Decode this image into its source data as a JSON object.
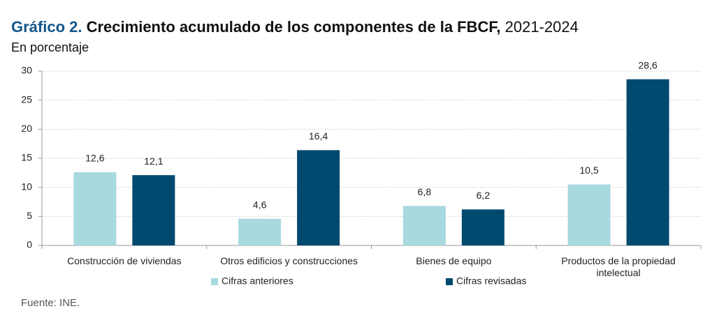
{
  "chart_data": {
    "type": "bar",
    "title_label": "Gráfico 2.",
    "title": "Crecimiento acumulado de los componentes de la FBCF,",
    "title_period": "2021-2024",
    "subtitle": "En porcentaje",
    "categories": [
      "Construcción de viviendas",
      "Otros edificios y construcciones",
      "Bienes de equipo",
      "Productos de la propiedad intelectual"
    ],
    "series": [
      {
        "name": "Cifras anteriores",
        "color": "#a8d9df",
        "values": [
          12.6,
          4.6,
          6.8,
          10.5
        ],
        "value_labels": [
          "12,6",
          "4,6",
          "6,8",
          "10,5"
        ]
      },
      {
        "name": "Cifras revisadas",
        "color": "#00496f",
        "values": [
          12.1,
          16.4,
          6.2,
          28.6
        ],
        "value_labels": [
          "12,1",
          "16,4",
          "6,2",
          "28,6"
        ]
      }
    ],
    "ylim": [
      0,
      30
    ],
    "yticks": [
      0,
      5,
      10,
      15,
      20,
      25,
      30
    ],
    "grid": true,
    "source_label": "Fuente:",
    "source": "INE."
  }
}
